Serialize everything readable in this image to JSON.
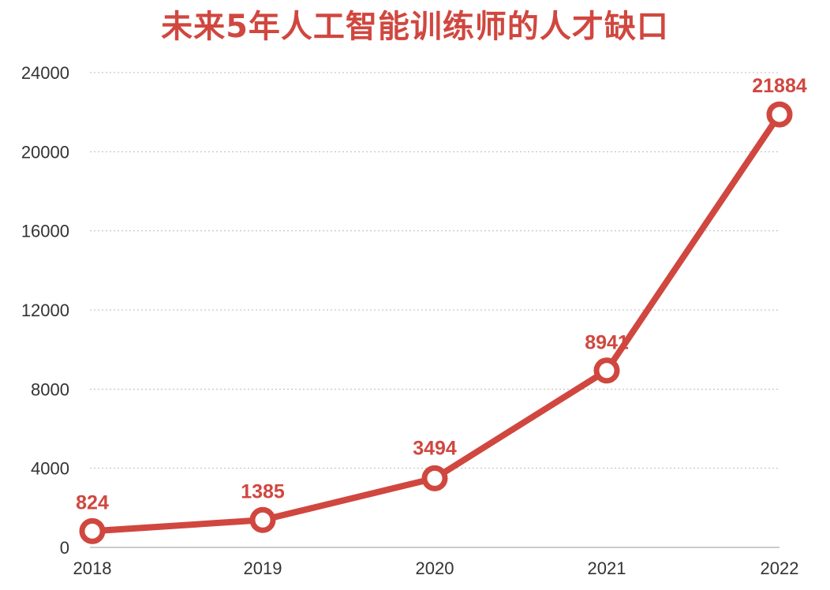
{
  "chart_data": {
    "type": "line",
    "title": "未来5年人工智能训练师的人才缺口",
    "categories": [
      "2018",
      "2019",
      "2020",
      "2021",
      "2022"
    ],
    "series": [
      {
        "values": [
          824,
          1385,
          3494,
          8941,
          21884
        ]
      }
    ],
    "data_labels": [
      "824",
      "1385",
      "3494",
      "8941",
      "21884"
    ],
    "y_ticks": [
      "0",
      "4000",
      "8000",
      "12000",
      "16000",
      "20000",
      "24000"
    ],
    "ylim": [
      0,
      24000
    ],
    "xlabel": "",
    "ylabel": "",
    "grid": true,
    "legend": "none",
    "colors": {
      "accent": "#d0473f",
      "grid": "#bbbbbb",
      "axis": "#999999",
      "tick_text": "#333333"
    }
  }
}
